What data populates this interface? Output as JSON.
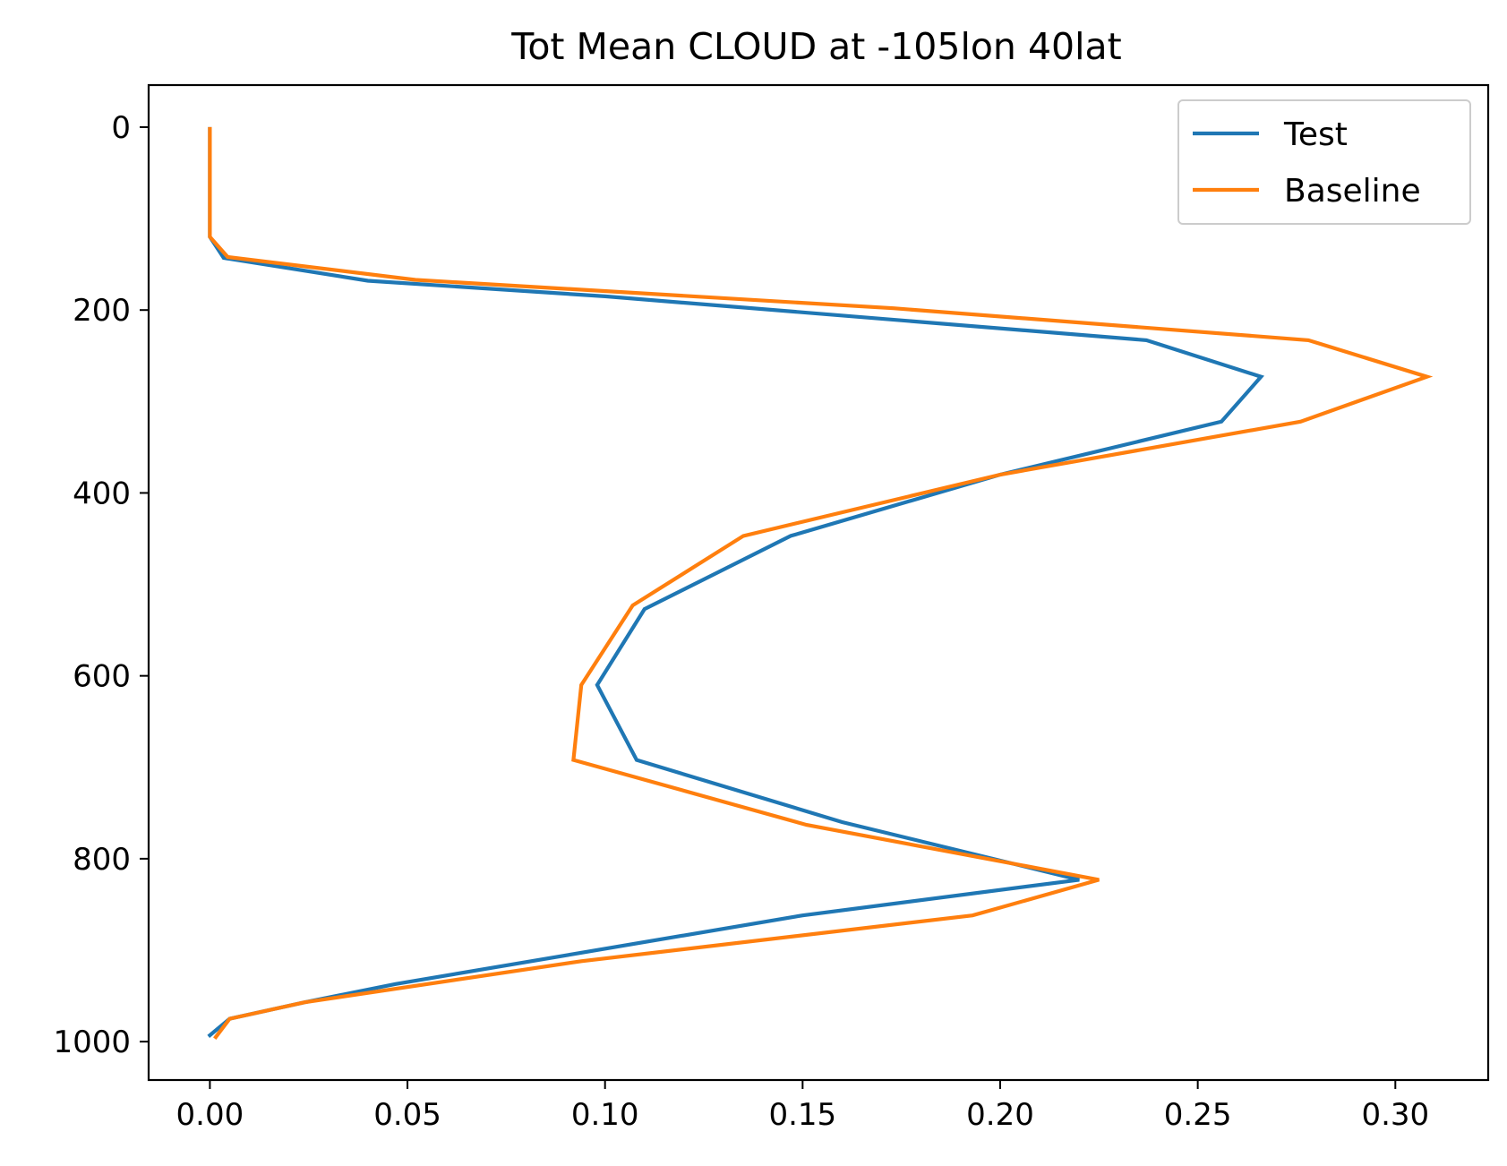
{
  "chart_data": {
    "type": "line",
    "title": "Tot Mean CLOUD at -105lon 40lat",
    "xlabel": "",
    "ylabel": "",
    "xlim": [
      -0.0155,
      0.3235
    ],
    "ylim": [
      1042,
      -46
    ],
    "y_inverted": true,
    "grid": false,
    "legend_position": "upper right",
    "x_ticks": [
      {
        "value": 0.0,
        "label": "0.00"
      },
      {
        "value": 0.05,
        "label": "0.05"
      },
      {
        "value": 0.1,
        "label": "0.10"
      },
      {
        "value": 0.15,
        "label": "0.15"
      },
      {
        "value": 0.2,
        "label": "0.20"
      },
      {
        "value": 0.25,
        "label": "0.25"
      },
      {
        "value": 0.3,
        "label": "0.30"
      }
    ],
    "y_ticks": [
      {
        "value": 0,
        "label": "0"
      },
      {
        "value": 200,
        "label": "200"
      },
      {
        "value": 400,
        "label": "400"
      },
      {
        "value": 600,
        "label": "600"
      },
      {
        "value": 800,
        "label": "800"
      },
      {
        "value": 1000,
        "label": "1000"
      }
    ],
    "series": [
      {
        "name": "Test",
        "color": "#1f77b4",
        "points": [
          {
            "x": 0.0,
            "y": 2
          },
          {
            "x": 0.0,
            "y": 120
          },
          {
            "x": 0.0035,
            "y": 143
          },
          {
            "x": 0.04,
            "y": 168
          },
          {
            "x": 0.1,
            "y": 185
          },
          {
            "x": 0.237,
            "y": 233
          },
          {
            "x": 0.266,
            "y": 273
          },
          {
            "x": 0.256,
            "y": 322
          },
          {
            "x": 0.2,
            "y": 380
          },
          {
            "x": 0.147,
            "y": 447
          },
          {
            "x": 0.11,
            "y": 527
          },
          {
            "x": 0.098,
            "y": 610
          },
          {
            "x": 0.108,
            "y": 692
          },
          {
            "x": 0.16,
            "y": 760
          },
          {
            "x": 0.22,
            "y": 823
          },
          {
            "x": 0.15,
            "y": 862
          },
          {
            "x": 0.047,
            "y": 937
          },
          {
            "x": 0.024,
            "y": 957
          },
          {
            "x": 0.005,
            "y": 975
          },
          {
            "x": 0.0,
            "y": 993
          }
        ]
      },
      {
        "name": "Baseline",
        "color": "#ff7f0e",
        "points": [
          {
            "x": 0.0,
            "y": 2
          },
          {
            "x": 0.0,
            "y": 120
          },
          {
            "x": 0.0045,
            "y": 142
          },
          {
            "x": 0.052,
            "y": 167
          },
          {
            "x": 0.173,
            "y": 198
          },
          {
            "x": 0.278,
            "y": 233
          },
          {
            "x": 0.308,
            "y": 273
          },
          {
            "x": 0.276,
            "y": 322
          },
          {
            "x": 0.2,
            "y": 380
          },
          {
            "x": 0.135,
            "y": 447
          },
          {
            "x": 0.107,
            "y": 523
          },
          {
            "x": 0.094,
            "y": 610
          },
          {
            "x": 0.092,
            "y": 692
          },
          {
            "x": 0.151,
            "y": 763
          },
          {
            "x": 0.225,
            "y": 823
          },
          {
            "x": 0.193,
            "y": 862
          },
          {
            "x": 0.094,
            "y": 912
          },
          {
            "x": 0.024,
            "y": 957
          },
          {
            "x": 0.005,
            "y": 975
          },
          {
            "x": 0.0015,
            "y": 995
          }
        ]
      }
    ]
  }
}
